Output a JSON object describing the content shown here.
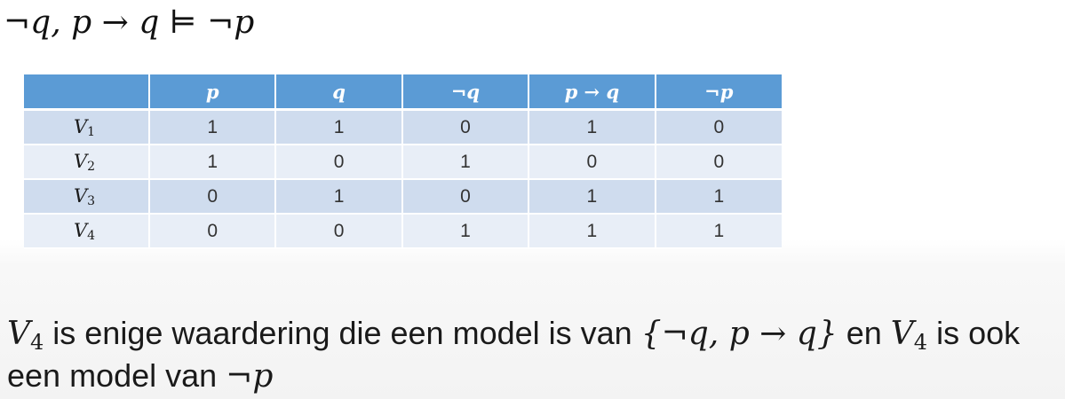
{
  "heading": "¬q, p → q  ⊨ ¬p",
  "table": {
    "headers": [
      "",
      "p",
      "q",
      "¬q",
      "p → q",
      "¬p"
    ],
    "rows": [
      {
        "label": "V",
        "sub": "1",
        "cells": [
          "1",
          "1",
          "0",
          "1",
          "0"
        ]
      },
      {
        "label": "V",
        "sub": "2",
        "cells": [
          "1",
          "0",
          "1",
          "0",
          "0"
        ]
      },
      {
        "label": "V",
        "sub": "3",
        "cells": [
          "0",
          "1",
          "0",
          "1",
          "1"
        ]
      },
      {
        "label": "V",
        "sub": "4",
        "cells": [
          "0",
          "0",
          "1",
          "1",
          "1"
        ]
      }
    ]
  },
  "conclusion": {
    "v_label": "V",
    "v_sub": "4",
    "text_1": " is enige waardering die een model is van ",
    "set_formula": "{¬q, p → q}",
    "text_2": " en ",
    "text_3": " is ook een model van ",
    "final_formula": "¬p"
  }
}
